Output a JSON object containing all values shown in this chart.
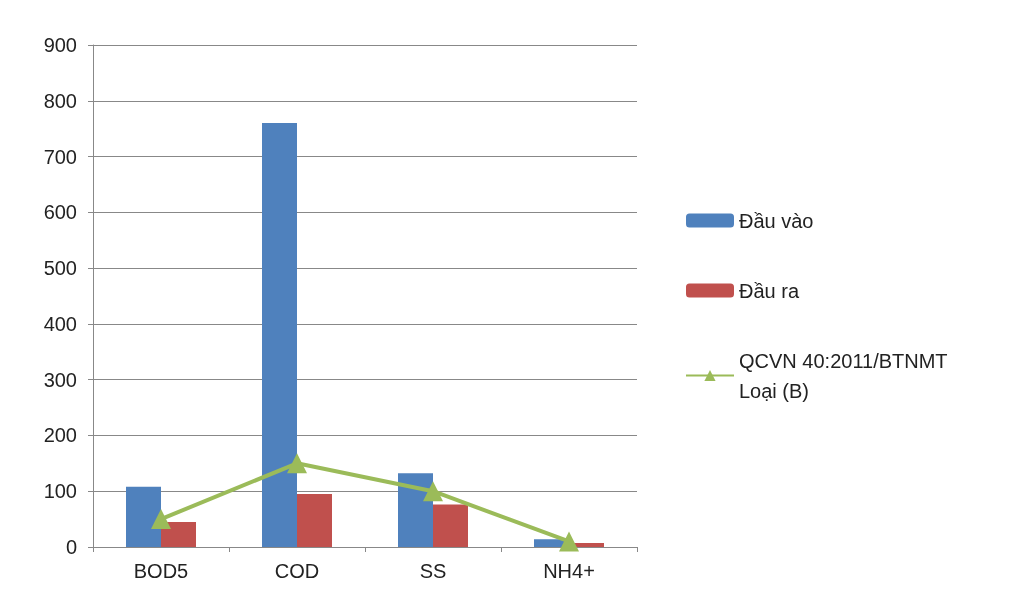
{
  "chart_data": {
    "type": "bar",
    "categories": [
      "BOD5",
      "COD",
      "SS",
      "NH4+"
    ],
    "series": [
      {
        "name": "Đầu vào",
        "color": "#4f81bd",
        "values": [
          108,
          760,
          132,
          14
        ]
      },
      {
        "name": "Đầu ra",
        "color": "#c0504d",
        "values": [
          45,
          95,
          76,
          7
        ]
      },
      {
        "name": "QCVN 40:2011/BTNMT Loại (B)",
        "type": "line",
        "color": "#9bbb59",
        "marker": "triangle",
        "values": [
          50,
          150,
          100,
          10
        ]
      }
    ],
    "ylim": [
      0,
      900
    ],
    "yticks": [
      0,
      100,
      200,
      300,
      400,
      500,
      600,
      700,
      800,
      900
    ],
    "grid": "y",
    "legend": "right"
  }
}
